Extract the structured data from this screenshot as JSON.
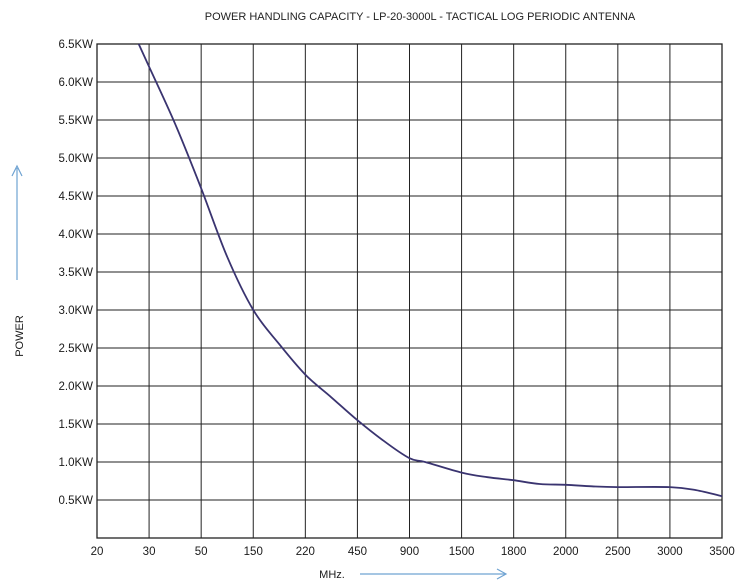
{
  "chart_data": {
    "type": "line",
    "title": "POWER HANDLING CAPACITY  -  LP-20-3000L  -  TACTICAL LOG PERIODIC ANTENNA",
    "xlabel": "MHz.",
    "ylabel": "POWER",
    "x_scale": "categorical (non-uniform, evenly spaced ticks)",
    "x_ticks": [
      "20",
      "30",
      "50",
      "150",
      "220",
      "450",
      "900",
      "1500",
      "1800",
      "2000",
      "2500",
      "3000",
      "3500"
    ],
    "y_ticks": [
      "0.5KW",
      "1.0KW",
      "1.5KW",
      "2.0KW",
      "2.5KW",
      "3.0KW",
      "3.5KW",
      "4.0KW",
      "4.5KW",
      "5.0KW",
      "5.5KW",
      "6.0KW",
      "6.5KW"
    ],
    "ylim": [
      0,
      6.5
    ],
    "y_unit": "KW",
    "grid": true,
    "legend": "none",
    "series": [
      {
        "x_index": [
          0.8,
          1.0,
          1.5,
          2.0,
          2.5,
          3.0,
          3.5,
          4.0,
          4.5,
          5.0,
          5.5,
          6.0,
          6.3,
          7.0,
          7.5,
          8.0,
          8.5,
          9.0,
          9.5,
          10.0,
          11.0,
          11.5,
          12.0
        ],
        "values": [
          6.5,
          6.2,
          5.45,
          4.6,
          3.7,
          3.0,
          2.55,
          2.15,
          1.85,
          1.55,
          1.28,
          1.05,
          1.0,
          0.86,
          0.8,
          0.76,
          0.71,
          0.7,
          0.68,
          0.67,
          0.67,
          0.63,
          0.55
        ]
      }
    ],
    "colors": {
      "curve": "#3a3470",
      "grid": "#222222",
      "arrow": "#6fa3d2",
      "text": "#1a1a1a"
    }
  }
}
